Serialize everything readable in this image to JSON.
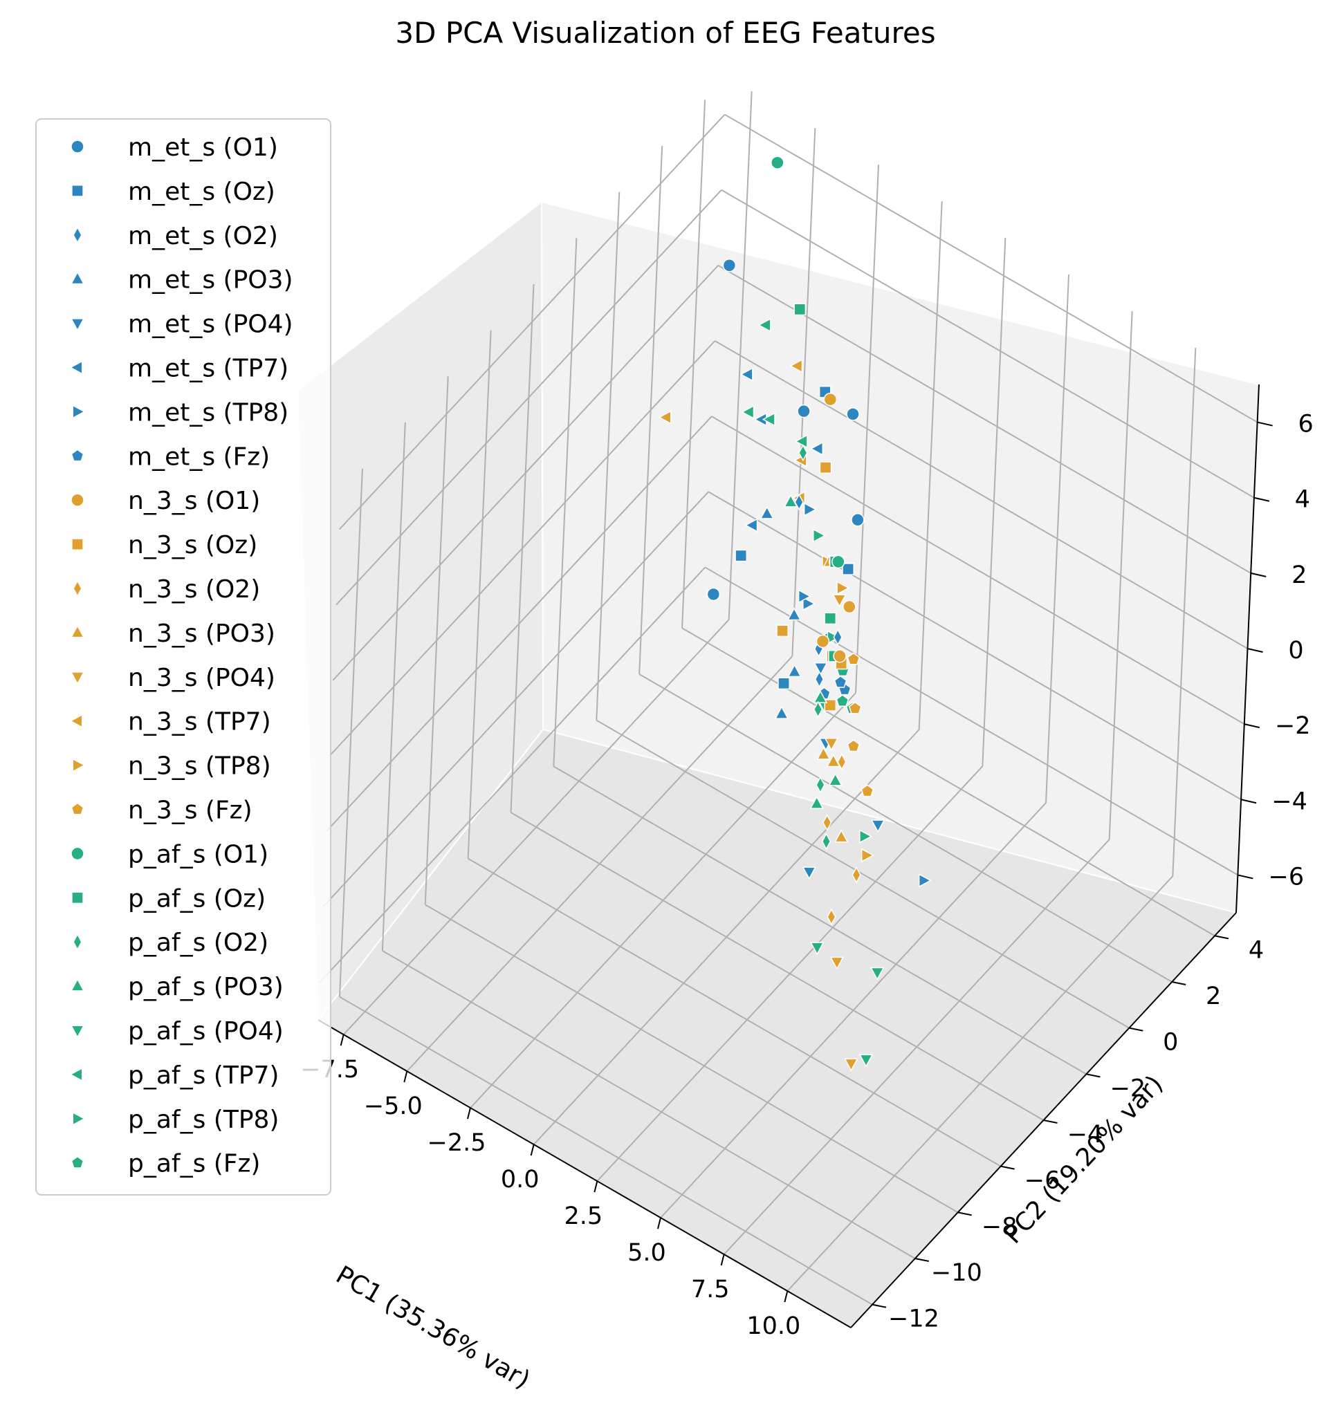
{
  "chart_data": {
    "type": "scatter",
    "title": "3D PCA Visualization of EEG Features",
    "xlabel": "PC1 (35.36% var)",
    "ylabel": "PC2 (19.20% var)",
    "zlabel": "",
    "xlim": [
      -8.5,
      12.5
    ],
    "ylim": [
      -13,
      5
    ],
    "zlim": [
      -7,
      7
    ],
    "x_ticks": [
      "−7.5",
      "−5.0",
      "−2.5",
      "0.0",
      "2.5",
      "5.0",
      "7.5",
      "10.0"
    ],
    "y_ticks": [
      "−12",
      "−10",
      "−8",
      "−6",
      "−4",
      "−2",
      "0",
      "2",
      "4"
    ],
    "z_ticks": [
      "−6",
      "−4",
      "−2",
      "0",
      "2",
      "4",
      "6"
    ],
    "grid": true,
    "legend_position": "left",
    "colors": {
      "m_et_s": "#2e86c1",
      "n_3_s": "#e0a030",
      "p_af_s": "#27ae85"
    },
    "marker_shapes": {
      "O1": "circle",
      "Oz": "square",
      "O2": "thin-diamond",
      "PO3": "triangle-up",
      "PO4": "triangle-down",
      "TP7": "triangle-left",
      "TP8": "triangle-right",
      "Fz": "pentagon"
    },
    "series": [
      {
        "name": "m_et_s (O1)",
        "group": "m_et_s",
        "marker": "O1",
        "points": [
          [
            -6.5,
            3.0,
            4.0
          ],
          [
            0.5,
            -6.0,
            3.5
          ],
          [
            -3.0,
            2.5,
            1.8
          ],
          [
            -1.5,
            3.0,
            2.0
          ],
          [
            2.0,
            -1.0,
            3.0
          ]
        ]
      },
      {
        "name": "m_et_s (Oz)",
        "group": "m_et_s",
        "marker": "Oz",
        "points": [
          [
            -3.0,
            3.5,
            1.7
          ],
          [
            2.5,
            -2.0,
            2.5
          ],
          [
            -4.0,
            1.0,
            -1.5
          ],
          [
            1.0,
            -3.0,
            -0.5
          ]
        ]
      },
      {
        "name": "m_et_s (O2)",
        "group": "m_et_s",
        "marker": "O2",
        "points": [
          [
            0.5,
            -2.0,
            3.5
          ],
          [
            5.5,
            -7.0,
            3.8
          ],
          [
            3.0,
            -3.0,
            1.5
          ],
          [
            1.5,
            -2.0,
            0.0
          ]
        ]
      },
      {
        "name": "m_et_s (PO3)",
        "group": "m_et_s",
        "marker": "PO3",
        "points": [
          [
            4.5,
            -7.5,
            2.8
          ],
          [
            0.5,
            -2.0,
            0.5
          ],
          [
            -1.5,
            -1.0,
            1.8
          ],
          [
            1.0,
            -2.5,
            -0.5
          ]
        ]
      },
      {
        "name": "m_et_s (PO4)",
        "group": "m_et_s",
        "marker": "PO4",
        "points": [
          [
            3.5,
            -4.0,
            -0.5
          ],
          [
            7.0,
            -9.0,
            0.5
          ],
          [
            2.0,
            -2.5,
            0.0
          ],
          [
            2.5,
            0.0,
            -5.5
          ]
        ]
      },
      {
        "name": "m_et_s (TP7)",
        "group": "m_et_s",
        "marker": "TP7",
        "points": [
          [
            -6.0,
            3.5,
            1.0
          ],
          [
            -5.0,
            3.0,
            0.5
          ],
          [
            -4.0,
            1.5,
            -1.0
          ],
          [
            -2.0,
            2.0,
            1.5
          ]
        ]
      },
      {
        "name": "m_et_s (TP8)",
        "group": "m_et_s",
        "marker": "TP8",
        "points": [
          [
            0.5,
            -1.5,
            3.0
          ],
          [
            1.0,
            -2.0,
            1.0
          ],
          [
            2.0,
            -3.5,
            2.5
          ],
          [
            2.0,
            3.0,
            -9.0
          ]
        ]
      },
      {
        "name": "m_et_s (Fz)",
        "group": "m_et_s",
        "marker": "Fz",
        "points": [
          [
            1.5,
            -1.5,
            0.0
          ],
          [
            2.0,
            -1.5,
            -1.0
          ],
          [
            1.0,
            -1.0,
            -2.0
          ],
          [
            1.0,
            0.0,
            -2.5
          ]
        ]
      },
      {
        "name": "n_3_s (O1)",
        "group": "n_3_s",
        "marker": "O1",
        "points": [
          [
            4.0,
            -5.0,
            3.0
          ],
          [
            3.0,
            -2.5,
            2.0
          ],
          [
            3.5,
            -3.5,
            1.5
          ],
          [
            -2.0,
            2.5,
            2.5
          ]
        ]
      },
      {
        "name": "n_3_s (Oz)",
        "group": "n_3_s",
        "marker": "Oz",
        "points": [
          [
            4.0,
            -7.0,
            4.5
          ],
          [
            -0.5,
            0.5,
            2.5
          ],
          [
            4.0,
            -4.5,
            1.0
          ],
          [
            2.0,
            -1.5,
            -0.5
          ]
        ]
      },
      {
        "name": "n_3_s (O2)",
        "group": "n_3_s",
        "marker": "O2",
        "points": [
          [
            8.0,
            -9.5,
            2.5
          ],
          [
            10.0,
            -10.5,
            2.5
          ],
          [
            6.5,
            -7.0,
            2.0
          ],
          [
            9.5,
            -11.0,
            1.5
          ]
        ]
      },
      {
        "name": "n_3_s (PO3)",
        "group": "n_3_s",
        "marker": "PO3",
        "points": [
          [
            5.0,
            -6.0,
            1.0
          ],
          [
            7.0,
            -7.5,
            0.5
          ],
          [
            5.0,
            -5.5,
            0.5
          ],
          [
            1.0,
            -1.0,
            1.5
          ]
        ]
      },
      {
        "name": "n_3_s (PO4)",
        "group": "n_3_s",
        "marker": "PO4",
        "points": [
          [
            3.0,
            -3.0,
            2.5
          ],
          [
            4.5,
            -5.0,
            0.5
          ],
          [
            9.0,
            -10.0,
            -0.5
          ],
          [
            10.5,
            -11.0,
            -2.0
          ]
        ]
      },
      {
        "name": "n_3_s (TP7)",
        "group": "n_3_s",
        "marker": "TP7",
        "points": [
          [
            -7.5,
            1.5,
            0.5
          ],
          [
            -4.5,
            4.0,
            1.5
          ],
          [
            -3.0,
            2.5,
            0.5
          ],
          [
            -3.0,
            2.5,
            -0.5
          ]
        ]
      },
      {
        "name": "n_3_s (TP8)",
        "group": "n_3_s",
        "marker": "TP8",
        "points": [
          [
            1.5,
            -1.0,
            1.0
          ],
          [
            0.5,
            -0.5,
            1.0
          ],
          [
            2.0,
            -2.0,
            0.0
          ],
          [
            2.5,
            -0.5,
            -6.0
          ]
        ]
      },
      {
        "name": "n_3_s (Fz)",
        "group": "n_3_s",
        "marker": "Fz",
        "points": [
          [
            3.0,
            -2.0,
            -1.0
          ],
          [
            3.0,
            -2.0,
            -2.0
          ],
          [
            4.0,
            -2.5,
            -2.5
          ],
          [
            0.5,
            1.0,
            -2.5
          ]
        ]
      },
      {
        "name": "p_af_s (O1)",
        "group": "p_af_s",
        "marker": "O1",
        "points": [
          [
            -6.0,
            4.5,
            6.0
          ],
          [
            2.0,
            -2.0,
            2.5
          ],
          [
            2.5,
            -2.5,
            3.0
          ]
        ]
      },
      {
        "name": "p_af_s (Oz)",
        "group": "p_af_s",
        "marker": "Oz",
        "points": [
          [
            -4.5,
            4.0,
            3.0
          ],
          [
            2.0,
            -2.0,
            2.5
          ],
          [
            1.5,
            -1.5,
            0.5
          ],
          [
            2.5,
            -2.5,
            0.5
          ]
        ]
      },
      {
        "name": "p_af_s (O2)",
        "group": "p_af_s",
        "marker": "O2",
        "points": [
          [
            -1.0,
            0.0,
            3.0
          ],
          [
            5.5,
            -7.0,
            3.0
          ],
          [
            6.5,
            -8.0,
            2.0
          ],
          [
            8.0,
            -9.5,
            2.0
          ]
        ]
      },
      {
        "name": "p_af_s (PO3)",
        "group": "p_af_s",
        "marker": "PO3",
        "points": [
          [
            -1.0,
            -0.5,
            2.0
          ],
          [
            4.0,
            -5.0,
            1.5
          ],
          [
            6.0,
            -7.5,
            1.0
          ],
          [
            5.5,
            -6.0,
            0.5
          ]
        ]
      },
      {
        "name": "p_af_s (PO4)",
        "group": "p_af_s",
        "marker": "PO4",
        "points": [
          [
            9.0,
            -11.0,
            0.5
          ],
          [
            3.0,
            -3.5,
            0.0
          ],
          [
            9.0,
            -8.0,
            -2.0
          ],
          [
            9.5,
            -9.0,
            -3.5
          ]
        ]
      },
      {
        "name": "p_af_s (TP7)",
        "group": "p_af_s",
        "marker": "TP7",
        "points": [
          [
            -5.0,
            3.0,
            3.0
          ],
          [
            -3.5,
            1.5,
            2.0
          ],
          [
            -3.0,
            2.5,
            1.0
          ],
          [
            -5.5,
            3.0,
            0.5
          ]
        ]
      },
      {
        "name": "p_af_s (TP8)",
        "group": "p_af_s",
        "marker": "TP8",
        "points": [
          [
            0.5,
            -1.0,
            2.0
          ],
          [
            2.0,
            -2.0,
            0.5
          ],
          [
            2.0,
            0.0,
            -6.0
          ]
        ]
      },
      {
        "name": "p_af_s (Fz)",
        "group": "p_af_s",
        "marker": "Fz",
        "points": [
          [
            2.5,
            -2.0,
            -1.0
          ],
          [
            2.5,
            -1.5,
            -1.5
          ],
          [
            0.5,
            0.5,
            -2.5
          ]
        ]
      }
    ]
  }
}
